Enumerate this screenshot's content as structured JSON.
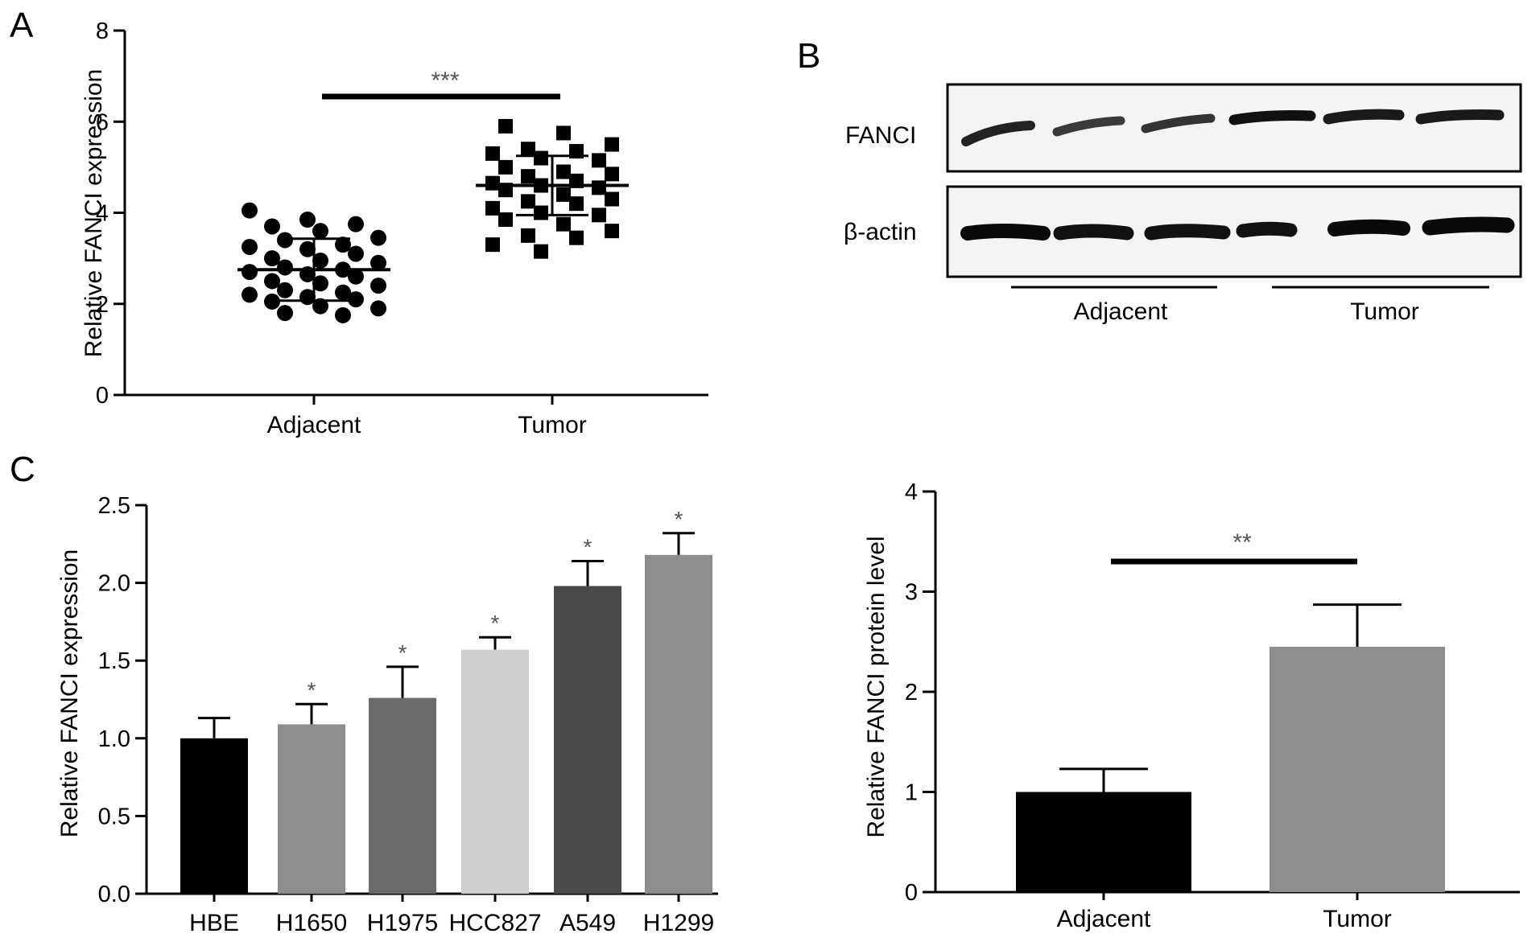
{
  "panels": {
    "a": {
      "letter": "A"
    },
    "b": {
      "letter": "B",
      "blot_labels": [
        "FANCI",
        "β-actin"
      ],
      "group_labels": [
        "Adjacent",
        "Tumor"
      ]
    },
    "c": {
      "letter": "C"
    }
  },
  "chart_data": [
    {
      "id": "panel-a",
      "type": "scatter",
      "ylabel": "Relative FANCI expression",
      "ylim": [
        0,
        8
      ],
      "yticks": [
        0,
        2,
        4,
        6,
        8
      ],
      "categories": [
        "Adjacent",
        "Tumor"
      ],
      "series": [
        {
          "marker": "circle",
          "mean": 2.75,
          "sd": 0.68,
          "values": [
            4.05,
            3.85,
            3.75,
            3.7,
            3.6,
            3.45,
            3.4,
            3.3,
            3.25,
            3.2,
            3.1,
            3.0,
            2.95,
            2.9,
            2.8,
            2.75,
            2.7,
            2.65,
            2.6,
            2.5,
            2.45,
            2.4,
            2.3,
            2.25,
            2.2,
            2.15,
            2.1,
            2.05,
            1.95,
            1.9,
            1.8,
            1.75
          ]
        },
        {
          "marker": "square",
          "mean": 4.6,
          "sd": 0.65,
          "values": [
            5.9,
            5.75,
            5.5,
            5.4,
            5.35,
            5.3,
            5.2,
            5.15,
            5.0,
            4.9,
            4.85,
            4.8,
            4.7,
            4.65,
            4.6,
            4.55,
            4.5,
            4.4,
            4.3,
            4.25,
            4.2,
            4.1,
            4.0,
            3.95,
            3.85,
            3.75,
            3.6,
            3.5,
            3.45,
            3.3,
            3.15
          ]
        }
      ],
      "significance": "***"
    },
    {
      "id": "panel-c",
      "type": "bar",
      "ylabel": "Relative FANCI expression",
      "ylim": [
        0,
        2.5
      ],
      "yticks": [
        "0.0",
        "0.5",
        "1.0",
        "1.5",
        "2.0",
        "2.5"
      ],
      "categories": [
        "HBE",
        "H1650",
        "H1975",
        "HCC827",
        "A549",
        "H1299"
      ],
      "values": [
        1.0,
        1.09,
        1.26,
        1.57,
        1.98,
        2.18
      ],
      "errors": [
        0.13,
        0.13,
        0.2,
        0.08,
        0.16,
        0.14
      ],
      "colors": [
        "#000000",
        "#8e8e8e",
        "#6a6a6a",
        "#cfcfcf",
        "#4a4a4a",
        "#8e8e8e"
      ],
      "annotations": [
        "",
        "*",
        "*",
        "*",
        "*",
        "*"
      ]
    },
    {
      "id": "panel-b-quant",
      "type": "bar",
      "ylabel": "Relative FANCI protein level",
      "ylim": [
        0,
        4
      ],
      "yticks": [
        0,
        1,
        2,
        3,
        4
      ],
      "categories": [
        "Adjacent",
        "Tumor"
      ],
      "values": [
        1.0,
        2.45
      ],
      "errors": [
        0.23,
        0.42
      ],
      "colors": [
        "#000000",
        "#8e8e8e"
      ],
      "significance": "**"
    }
  ]
}
